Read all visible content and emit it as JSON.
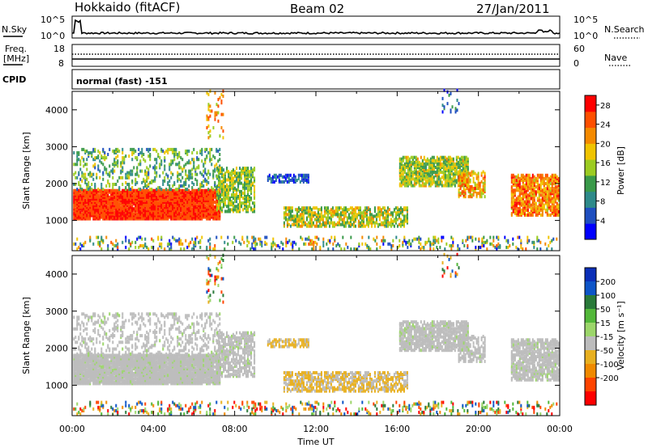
{
  "header": {
    "station": "Hokkaido (fitACF)",
    "beam": "Beam 02",
    "date": "27/Jan/2011"
  },
  "summary_panels": {
    "nsky_label": "N.Sky",
    "nsearch_label": "N.Search",
    "count_ticks": [
      "10^5",
      "10^0"
    ],
    "freq_label": "Freq.",
    "freq_unit": "[MHz]",
    "freq_ticks": [
      "18",
      "8"
    ],
    "nave_label": "Nave",
    "nave_ticks": [
      "60",
      "0"
    ],
    "cpid_label": "CPID",
    "cpid_value": "normal (fast) -151"
  },
  "colors": {
    "power": [
      "#0000ff",
      "#1f4fc0",
      "#2e8a8a",
      "#3a9a4a",
      "#9ccc22",
      "#f0c400",
      "#f48a00",
      "#ff5000",
      "#ff0000"
    ],
    "velocity": [
      "#0b2fb8",
      "#0e55c8",
      "#2a7a3a",
      "#53b83a",
      "#9cd66a",
      "#bcbcbc",
      "#e8b020",
      "#f08a00",
      "#ff4400",
      "#ff0000"
    ]
  },
  "chart_data": [
    {
      "type": "heatmap",
      "panel": "power",
      "xlabel": "Time UT",
      "ylabel": "Slant Range [km]",
      "xlim": [
        0,
        24
      ],
      "ylim": [
        180,
        4500
      ],
      "x_ticks": [
        "00:00",
        "04:00",
        "08:00",
        "12:00",
        "16:00",
        "20:00",
        "00:00"
      ],
      "y_ticks": [
        1000,
        2000,
        3000,
        4000
      ],
      "colorbar_label": "Power [dB]",
      "colorbar_ticks": [
        4,
        8,
        12,
        16,
        20,
        24,
        28
      ],
      "colorbar_range": [
        0,
        30
      ]
    },
    {
      "type": "heatmap",
      "panel": "velocity",
      "xlabel": "Time UT",
      "ylabel": "Slant Range [km]",
      "xlim": [
        0,
        24
      ],
      "ylim": [
        180,
        4500
      ],
      "x_ticks": [
        "00:00",
        "04:00",
        "08:00",
        "12:00",
        "16:00",
        "20:00",
        "00:00"
      ],
      "y_ticks": [
        1000,
        2000,
        3000,
        4000
      ],
      "colorbar_label": "Velocity [m s⁻¹]",
      "colorbar_ticks": [
        "200",
        "100",
        "50",
        "15",
        "-15",
        "-50",
        "-100",
        "-200"
      ]
    }
  ]
}
